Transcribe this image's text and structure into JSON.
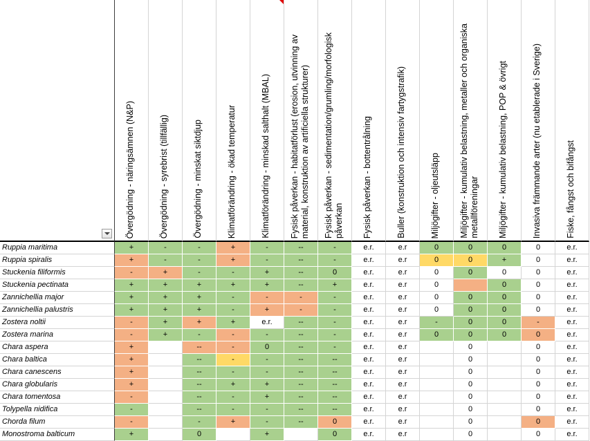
{
  "colors": {
    "green": "#a9d08e",
    "orange": "#f4b084",
    "yellow": "#ffd966",
    "comment": "#e00000"
  },
  "sheet": {
    "filter_icon": "dropdown-arrow-icon",
    "headers": [
      {
        "lines": [
          "Övergödning - näringsämnen (N&P)"
        ]
      },
      {
        "lines": [
          "Övergödning - syrebrist (tillfällig)"
        ]
      },
      {
        "lines": [
          "Övergödning - minskat siktdjup"
        ]
      },
      {
        "lines": [
          "Klimatförändring - ökad temperatur"
        ]
      },
      {
        "lines": [
          "Klimatförändring - minskad salthalt (MBAL)"
        ],
        "comment": true
      },
      {
        "lines": [
          "Fysisk påverkan - habitatförlust (erosion, utvinning av",
          "material, konstruktion av artificiella strukturer)"
        ]
      },
      {
        "lines": [
          "Fysisk påverkan - sedimentation/grumling/morfologisk",
          "påverkan"
        ]
      },
      {
        "lines": [
          "Fysisk påverkan - bottentrålning"
        ]
      },
      {
        "lines": [
          "Buller (konstruktion och intensiv fartygstrafik)"
        ]
      },
      {
        "lines": [
          "Miljögifter - oljeutsläpp"
        ]
      },
      {
        "lines": [
          "Miljögifter - kumulativ belastning, metaller och organiska",
          "metallföreningar"
        ]
      },
      {
        "lines": [
          "Miljögifter - kumulativ belastning, POP & övrigt"
        ]
      },
      {
        "lines": [
          "Invasiva främmande arter (nu etablerade i Sverige)"
        ]
      },
      {
        "lines": [
          "Fiske, fångst och bifångst"
        ]
      }
    ],
    "rows": [
      {
        "species": "Ruppia maritima",
        "cells": [
          {
            "v": "+",
            "fill": "#a9d08e"
          },
          {
            "v": "-",
            "fill": "#a9d08e"
          },
          {
            "v": "-",
            "fill": "#a9d08e"
          },
          {
            "v": "+",
            "fill": "#f4b084"
          },
          {
            "v": "-",
            "fill": "#a9d08e"
          },
          {
            "v": "--",
            "fill": "#a9d08e"
          },
          {
            "v": "-",
            "fill": "#a9d08e"
          },
          {
            "v": "e.r."
          },
          {
            "v": "e.r"
          },
          {
            "v": "0",
            "fill": "#a9d08e"
          },
          {
            "v": "0",
            "fill": "#a9d08e"
          },
          {
            "v": "0",
            "fill": "#a9d08e"
          },
          {
            "v": "0"
          },
          {
            "v": "e.r."
          }
        ]
      },
      {
        "species": "Ruppia spiralis",
        "cells": [
          {
            "v": "+",
            "fill": "#f4b084"
          },
          {
            "v": "-",
            "fill": "#a9d08e"
          },
          {
            "v": "-",
            "fill": "#a9d08e"
          },
          {
            "v": "+",
            "fill": "#f4b084"
          },
          {
            "v": "-",
            "fill": "#a9d08e"
          },
          {
            "v": "--",
            "fill": "#a9d08e"
          },
          {
            "v": "-",
            "fill": "#a9d08e"
          },
          {
            "v": "e.r."
          },
          {
            "v": "e.r"
          },
          {
            "v": "0",
            "fill": "#ffd966"
          },
          {
            "v": "0",
            "fill": "#ffd966"
          },
          {
            "v": "+",
            "fill": "#a9d08e"
          },
          {
            "v": "0"
          },
          {
            "v": "e.r."
          }
        ]
      },
      {
        "species": "Stuckenia filiformis",
        "cells": [
          {
            "v": "-",
            "fill": "#f4b084"
          },
          {
            "v": "+",
            "fill": "#f4b084"
          },
          {
            "v": "-",
            "fill": "#a9d08e"
          },
          {
            "v": "-",
            "fill": "#a9d08e"
          },
          {
            "v": "+",
            "fill": "#a9d08e"
          },
          {
            "v": "--",
            "fill": "#a9d08e"
          },
          {
            "v": "0",
            "fill": "#a9d08e"
          },
          {
            "v": "e.r."
          },
          {
            "v": "e.r"
          },
          {
            "v": "0"
          },
          {
            "v": "0",
            "fill": "#a9d08e"
          },
          {
            "v": "0"
          },
          {
            "v": "0"
          },
          {
            "v": "e.r."
          }
        ]
      },
      {
        "species": "Stuckenia pectinata",
        "cells": [
          {
            "v": "+",
            "fill": "#a9d08e"
          },
          {
            "v": "+",
            "fill": "#a9d08e"
          },
          {
            "v": "+",
            "fill": "#a9d08e"
          },
          {
            "v": "+",
            "fill": "#a9d08e"
          },
          {
            "v": "+",
            "fill": "#a9d08e"
          },
          {
            "v": "--",
            "fill": "#a9d08e"
          },
          {
            "v": "+",
            "fill": "#a9d08e"
          },
          {
            "v": "e.r."
          },
          {
            "v": "e.r"
          },
          {
            "v": "0"
          },
          {
            "v": "",
            "fill": "#f4b084"
          },
          {
            "v": "0",
            "fill": "#a9d08e"
          },
          {
            "v": "0"
          },
          {
            "v": "e.r."
          }
        ]
      },
      {
        "species": "Zannichellia major",
        "cells": [
          {
            "v": "+",
            "fill": "#a9d08e"
          },
          {
            "v": "+",
            "fill": "#a9d08e"
          },
          {
            "v": "+",
            "fill": "#a9d08e"
          },
          {
            "v": "-",
            "fill": "#a9d08e"
          },
          {
            "v": "-",
            "fill": "#f4b084"
          },
          {
            "v": "-",
            "fill": "#f4b084"
          },
          {
            "v": "-",
            "fill": "#a9d08e"
          },
          {
            "v": "e.r."
          },
          {
            "v": "e.r"
          },
          {
            "v": "0"
          },
          {
            "v": "0",
            "fill": "#a9d08e"
          },
          {
            "v": "0",
            "fill": "#a9d08e"
          },
          {
            "v": "0"
          },
          {
            "v": "e.r."
          }
        ]
      },
      {
        "species": "Zannichellia palustris",
        "cells": [
          {
            "v": "+",
            "fill": "#a9d08e"
          },
          {
            "v": "+",
            "fill": "#a9d08e"
          },
          {
            "v": "+",
            "fill": "#a9d08e"
          },
          {
            "v": "-",
            "fill": "#a9d08e"
          },
          {
            "v": "+",
            "fill": "#f4b084"
          },
          {
            "v": "-",
            "fill": "#f4b084"
          },
          {
            "v": "-",
            "fill": "#a9d08e"
          },
          {
            "v": "e.r."
          },
          {
            "v": "e.r"
          },
          {
            "v": "0"
          },
          {
            "v": "0",
            "fill": "#a9d08e"
          },
          {
            "v": "0",
            "fill": "#a9d08e"
          },
          {
            "v": "0"
          },
          {
            "v": "e.r."
          }
        ]
      },
      {
        "species": "Zostera noltii",
        "cells": [
          {
            "v": "-",
            "fill": "#f4b084"
          },
          {
            "v": "+",
            "fill": "#a9d08e"
          },
          {
            "v": "+",
            "fill": "#f4b084"
          },
          {
            "v": "+",
            "fill": "#a9d08e"
          },
          {
            "v": "e.r."
          },
          {
            "v": "--",
            "fill": "#a9d08e"
          },
          {
            "v": "-",
            "fill": "#a9d08e"
          },
          {
            "v": "e.r."
          },
          {
            "v": "e.r"
          },
          {
            "v": "-",
            "fill": "#a9d08e"
          },
          {
            "v": "0",
            "fill": "#a9d08e"
          },
          {
            "v": "0",
            "fill": "#a9d08e"
          },
          {
            "v": "-",
            "fill": "#f4b084"
          },
          {
            "v": "e.r."
          }
        ]
      },
      {
        "species": "Zostera marina",
        "cells": [
          {
            "v": "-",
            "fill": "#f4b084"
          },
          {
            "v": "+",
            "fill": "#a9d08e"
          },
          {
            "v": "-",
            "fill": "#a9d08e"
          },
          {
            "v": "-",
            "fill": "#f4b084"
          },
          {
            "v": "-",
            "fill": "#a9d08e"
          },
          {
            "v": "--",
            "fill": "#a9d08e"
          },
          {
            "v": "-",
            "fill": "#a9d08e"
          },
          {
            "v": "e.r."
          },
          {
            "v": "e.r"
          },
          {
            "v": "0",
            "fill": "#a9d08e"
          },
          {
            "v": "0",
            "fill": "#a9d08e"
          },
          {
            "v": "0",
            "fill": "#a9d08e"
          },
          {
            "v": "0",
            "fill": "#f4b084"
          },
          {
            "v": "e.r."
          }
        ]
      },
      {
        "species": "Chara aspera",
        "cells": [
          {
            "v": "+",
            "fill": "#f4b084"
          },
          {
            "v": ""
          },
          {
            "v": "--",
            "fill": "#f4b084"
          },
          {
            "v": "-",
            "fill": "#f4b084"
          },
          {
            "v": "0",
            "fill": "#a9d08e"
          },
          {
            "v": "--",
            "fill": "#a9d08e"
          },
          {
            "v": "-",
            "fill": "#a9d08e"
          },
          {
            "v": "e.r."
          },
          {
            "v": "e.r"
          },
          {
            "v": ""
          },
          {
            "v": "0"
          },
          {
            "v": ""
          },
          {
            "v": "0"
          },
          {
            "v": "e.r."
          }
        ]
      },
      {
        "species": "Chara baltica",
        "cells": [
          {
            "v": "+",
            "fill": "#f4b084"
          },
          {
            "v": ""
          },
          {
            "v": "--",
            "fill": "#a9d08e"
          },
          {
            "v": "-",
            "fill": "#ffd966"
          },
          {
            "v": "-",
            "fill": "#a9d08e"
          },
          {
            "v": "--",
            "fill": "#a9d08e"
          },
          {
            "v": "--",
            "fill": "#a9d08e"
          },
          {
            "v": "e.r."
          },
          {
            "v": "e.r"
          },
          {
            "v": ""
          },
          {
            "v": "0"
          },
          {
            "v": ""
          },
          {
            "v": "0"
          },
          {
            "v": "e.r."
          }
        ]
      },
      {
        "species": "Chara canescens",
        "cells": [
          {
            "v": "+",
            "fill": "#f4b084"
          },
          {
            "v": ""
          },
          {
            "v": "--",
            "fill": "#a9d08e"
          },
          {
            "v": "-",
            "fill": "#a9d08e"
          },
          {
            "v": "-",
            "fill": "#a9d08e"
          },
          {
            "v": "--",
            "fill": "#a9d08e"
          },
          {
            "v": "--",
            "fill": "#a9d08e"
          },
          {
            "v": "e.r."
          },
          {
            "v": "e.r"
          },
          {
            "v": ""
          },
          {
            "v": "0"
          },
          {
            "v": ""
          },
          {
            "v": "0"
          },
          {
            "v": "e.r."
          }
        ]
      },
      {
        "species": "Chara globularis",
        "cells": [
          {
            "v": "+",
            "fill": "#f4b084"
          },
          {
            "v": ""
          },
          {
            "v": "--",
            "fill": "#a9d08e"
          },
          {
            "v": "+",
            "fill": "#a9d08e"
          },
          {
            "v": "+",
            "fill": "#a9d08e"
          },
          {
            "v": "--",
            "fill": "#a9d08e"
          },
          {
            "v": "--",
            "fill": "#a9d08e"
          },
          {
            "v": "e.r."
          },
          {
            "v": "e.r"
          },
          {
            "v": ""
          },
          {
            "v": "0"
          },
          {
            "v": ""
          },
          {
            "v": "0"
          },
          {
            "v": "e.r."
          }
        ]
      },
      {
        "species": "Chara tomentosa",
        "cells": [
          {
            "v": "-",
            "fill": "#f4b084"
          },
          {
            "v": ""
          },
          {
            "v": "--",
            "fill": "#a9d08e"
          },
          {
            "v": "-",
            "fill": "#a9d08e"
          },
          {
            "v": "+",
            "fill": "#a9d08e"
          },
          {
            "v": "--",
            "fill": "#a9d08e"
          },
          {
            "v": "--",
            "fill": "#a9d08e"
          },
          {
            "v": "e.r."
          },
          {
            "v": "e.r"
          },
          {
            "v": ""
          },
          {
            "v": "0"
          },
          {
            "v": ""
          },
          {
            "v": "0"
          },
          {
            "v": "e.r."
          }
        ]
      },
      {
        "species": "Tolypella nidifica",
        "cells": [
          {
            "v": "-",
            "fill": "#a9d08e"
          },
          {
            "v": ""
          },
          {
            "v": "--",
            "fill": "#a9d08e"
          },
          {
            "v": "-",
            "fill": "#a9d08e"
          },
          {
            "v": "-",
            "fill": "#a9d08e"
          },
          {
            "v": "--",
            "fill": "#a9d08e"
          },
          {
            "v": "--",
            "fill": "#a9d08e"
          },
          {
            "v": "e.r."
          },
          {
            "v": "e.r"
          },
          {
            "v": ""
          },
          {
            "v": "0"
          },
          {
            "v": ""
          },
          {
            "v": "0"
          },
          {
            "v": "e.r."
          }
        ]
      },
      {
        "species": "Chorda filum",
        "cells": [
          {
            "v": "-",
            "fill": "#f4b084"
          },
          {
            "v": ""
          },
          {
            "v": "-",
            "fill": "#a9d08e"
          },
          {
            "v": "+",
            "fill": "#f4b084"
          },
          {
            "v": "-",
            "fill": "#a9d08e"
          },
          {
            "v": "--",
            "fill": "#a9d08e"
          },
          {
            "v": "0",
            "fill": "#f4b084"
          },
          {
            "v": "e.r."
          },
          {
            "v": "e.r"
          },
          {
            "v": ""
          },
          {
            "v": "0"
          },
          {
            "v": ""
          },
          {
            "v": "0",
            "fill": "#f4b084"
          },
          {
            "v": "e.r."
          }
        ]
      },
      {
        "species": "Monostroma balticum",
        "cells": [
          {
            "v": "+",
            "fill": "#a9d08e"
          },
          {
            "v": ""
          },
          {
            "v": "0",
            "fill": "#a9d08e"
          },
          {
            "v": ""
          },
          {
            "v": "+",
            "fill": "#a9d08e"
          },
          {
            "v": ""
          },
          {
            "v": "0",
            "fill": "#a9d08e"
          },
          {
            "v": "e.r."
          },
          {
            "v": "e.r"
          },
          {
            "v": ""
          },
          {
            "v": "0"
          },
          {
            "v": ""
          },
          {
            "v": "0"
          },
          {
            "v": "e.r."
          }
        ]
      }
    ]
  }
}
